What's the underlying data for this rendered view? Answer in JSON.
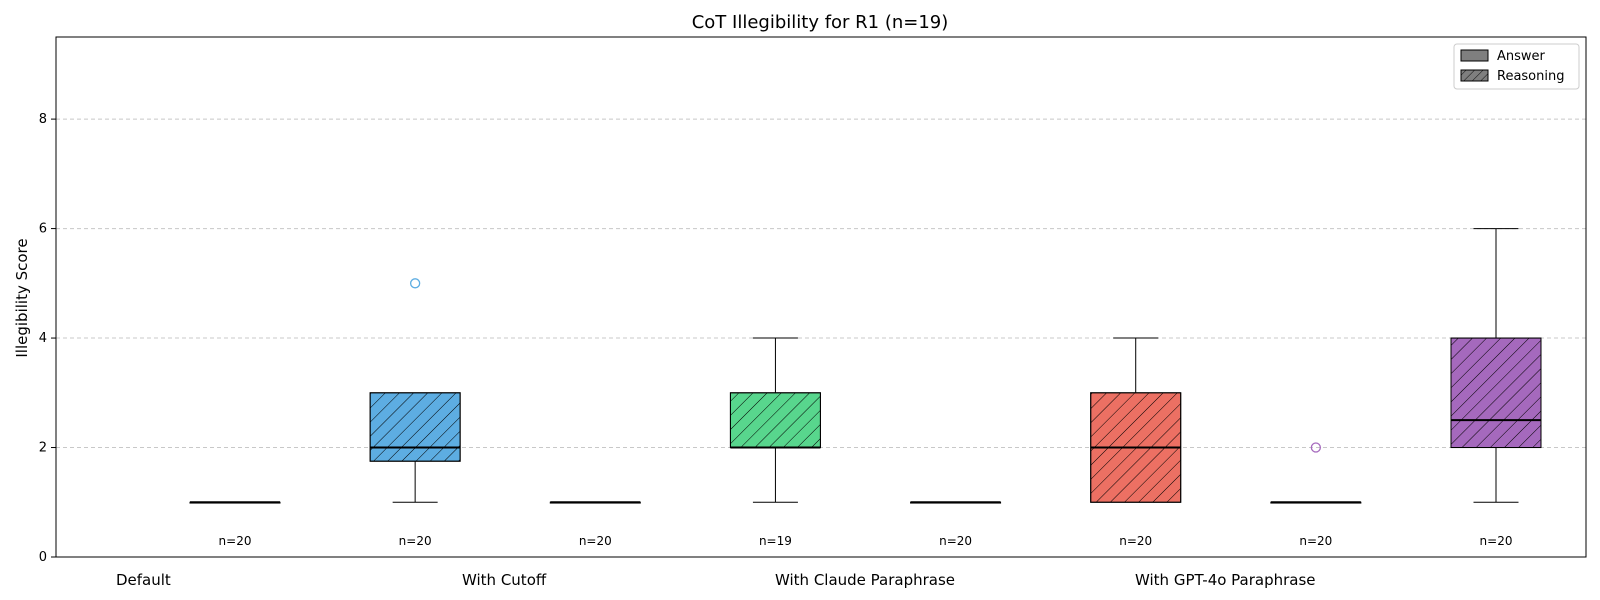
{
  "chart_data": {
    "type": "box",
    "title": "CoT Illegibility for R1 (n=19)",
    "xlabel": "",
    "ylabel": "Illegibility Score",
    "ylim": [
      0,
      9.5
    ],
    "yticks": [
      0,
      2,
      4,
      6,
      8
    ],
    "grid": "horizontal dashed",
    "legend": {
      "placement": "top-right",
      "entries": [
        {
          "label": "Answer",
          "hatch": false
        },
        {
          "label": "Reasoning",
          "hatch": true
        }
      ]
    },
    "groups": [
      "Default",
      "With Cutoff",
      "With Claude Paraphrase",
      "With GPT-4o Paraphrase"
    ],
    "boxes": [
      {
        "kind": "Answer",
        "color": "#7f7f7f",
        "whislo": 1,
        "q1": 1,
        "med": 1,
        "q3": 1,
        "whishi": 1,
        "outliers": [],
        "n_label": "n=20"
      },
      {
        "kind": "Reasoning",
        "color": "#5dade2",
        "whislo": 1,
        "q1": 1.75,
        "med": 2,
        "q3": 3,
        "whishi": 3,
        "outliers": [
          5
        ],
        "n_label": "n=20"
      },
      {
        "kind": "Answer",
        "color": "#7f7f7f",
        "whislo": 1,
        "q1": 1,
        "med": 1,
        "q3": 1,
        "whishi": 1,
        "outliers": [],
        "n_label": "n=20"
      },
      {
        "kind": "Reasoning",
        "color": "#58d68d",
        "whislo": 1,
        "q1": 2,
        "med": 2,
        "q3": 3,
        "whishi": 4,
        "outliers": [],
        "n_label": "n=19"
      },
      {
        "kind": "Answer",
        "color": "#7f7f7f",
        "whislo": 1,
        "q1": 1,
        "med": 1,
        "q3": 1,
        "whishi": 1,
        "outliers": [],
        "n_label": "n=20"
      },
      {
        "kind": "Reasoning",
        "color": "#ec7063",
        "whislo": 1,
        "q1": 1,
        "med": 2,
        "q3": 3,
        "whishi": 4,
        "outliers": [],
        "n_label": "n=20"
      },
      {
        "kind": "Answer",
        "color": "#7f7f7f",
        "whislo": 1,
        "q1": 1,
        "med": 1,
        "q3": 1,
        "whishi": 1,
        "outliers": [
          2
        ],
        "outlier_color": "#a569bd",
        "n_label": "n=20"
      },
      {
        "kind": "Reasoning",
        "color": "#a569bd",
        "whislo": 1,
        "q1": 2,
        "med": 2.5,
        "q3": 4,
        "whishi": 6,
        "outliers": [],
        "n_label": "n=20"
      }
    ]
  }
}
